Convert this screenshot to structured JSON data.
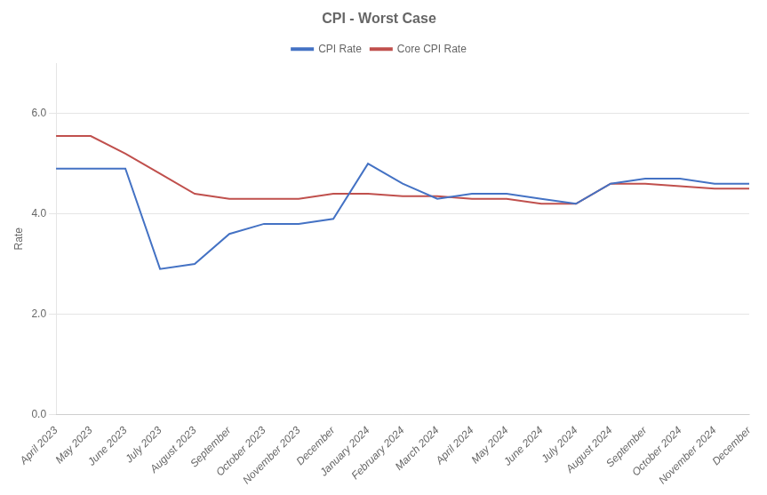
{
  "chart_data": {
    "type": "line",
    "title": "CPI - Worst Case",
    "ylabel": "Rate",
    "categories": [
      "April 2023",
      "May 2023",
      "June 2023",
      "July 2023",
      "August 2023",
      "September",
      "October 2023",
      "November 2023",
      "December",
      "January 2024",
      "February 2024",
      "March 2024",
      "April 2024",
      "May 2024",
      "June 2024",
      "July 2024",
      "August 2024",
      "September",
      "October 2024",
      "November 2024",
      "December"
    ],
    "series": [
      {
        "name": "CPI Rate",
        "color": "#4472C4",
        "values": [
          4.9,
          4.9,
          4.9,
          2.9,
          3.0,
          3.6,
          3.8,
          3.8,
          3.9,
          5.0,
          4.6,
          4.3,
          4.4,
          4.4,
          4.3,
          4.2,
          4.6,
          4.7,
          4.7,
          4.6,
          4.6
        ]
      },
      {
        "name": "Core CPI Rate",
        "color": "#C0504D",
        "values": [
          5.55,
          5.55,
          5.2,
          4.8,
          4.4,
          4.3,
          4.3,
          4.3,
          4.4,
          4.4,
          4.35,
          4.35,
          4.3,
          4.3,
          4.2,
          4.2,
          4.6,
          4.6,
          4.55,
          4.5,
          4.5
        ]
      }
    ],
    "ylim": [
      0.0,
      7.0
    ],
    "yticks": [
      {
        "value": 0.0,
        "label": "0.0"
      },
      {
        "value": 2.0,
        "label": "2.0"
      },
      {
        "value": 4.0,
        "label": "4.0"
      },
      {
        "value": 6.0,
        "label": "6.0"
      }
    ],
    "grid": true,
    "legend": "top"
  }
}
